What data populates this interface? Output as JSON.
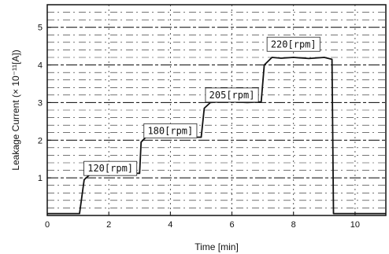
{
  "chart_data": {
    "type": "line",
    "title": "",
    "xlabel": "Time [min]",
    "ylabel": "Leakage Current (× 10⁻¹¹[A])",
    "xlim": [
      0,
      11
    ],
    "ylim": [
      0,
      5.6
    ],
    "xticks": [
      0,
      2,
      4,
      6,
      8,
      10
    ],
    "yticks": [
      1,
      2,
      3,
      4,
      5
    ],
    "grid": true,
    "series": [
      {
        "x": [
          0.0,
          1.05,
          1.2,
          1.4,
          2.0,
          3.0,
          3.05,
          3.2,
          3.5,
          4.0,
          4.5,
          5.0,
          5.1,
          5.3,
          5.6,
          6.0,
          6.5,
          6.95,
          7.05,
          7.3,
          7.6,
          8.0,
          8.5,
          9.0,
          9.25,
          9.3,
          11.0
        ],
        "y": [
          0.05,
          0.05,
          0.95,
          1.1,
          1.12,
          1.12,
          1.95,
          2.08,
          2.1,
          2.1,
          2.08,
          2.08,
          2.85,
          3.0,
          3.02,
          3.02,
          3.0,
          3.02,
          4.0,
          4.2,
          4.18,
          4.2,
          4.17,
          4.2,
          4.15,
          0.05,
          0.05
        ]
      }
    ],
    "annotations": [
      {
        "text": "120[rpm]",
        "x": 2.05,
        "y": 1.25
      },
      {
        "text": "180[rpm]",
        "x": 4.0,
        "y": 2.25
      },
      {
        "text": "205[rpm]",
        "x": 6.0,
        "y": 3.2
      },
      {
        "text": "220[rpm]",
        "x": 8.0,
        "y": 4.55
      }
    ]
  }
}
